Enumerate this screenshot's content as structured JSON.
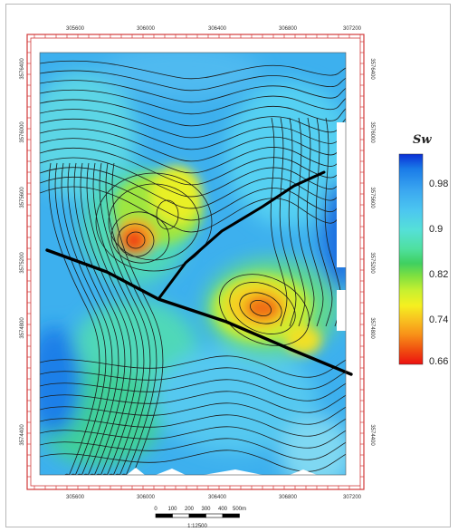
{
  "map": {
    "x_ticks": [
      "305600",
      "306000",
      "306400",
      "306800",
      "307200"
    ],
    "y_ticks_left": [
      "3576400",
      "3576000",
      "3575600",
      "3575200",
      "3574800",
      "3574400"
    ],
    "y_ticks_right": [
      "3576400",
      "3576000",
      "3575600",
      "3575200",
      "3574800",
      "3574400"
    ]
  },
  "legend": {
    "title": "Sw",
    "labels": [
      "0.98",
      "0.9",
      "0.82",
      "0.74",
      "0.66"
    ],
    "colors": [
      "#0a2fd6",
      "#1a7be8",
      "#3aa6f0",
      "#4cc7f0",
      "#55e0d8",
      "#4fe0a0",
      "#3fd060",
      "#7fe040",
      "#c8f030",
      "#f5f020",
      "#f8c020",
      "#f89018",
      "#f05010",
      "#ec1010"
    ]
  },
  "scale_bar": {
    "ticks": [
      "0",
      "100",
      "200",
      "300",
      "400",
      "500m"
    ],
    "ratio": "1:12500"
  },
  "colors": {
    "frame_red": "#d23a3a",
    "fault_line": "#000000",
    "contour": "#1a1a1a"
  }
}
